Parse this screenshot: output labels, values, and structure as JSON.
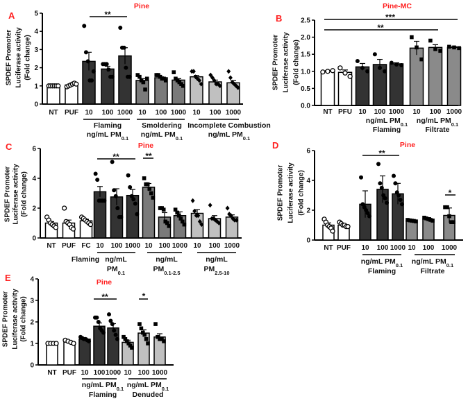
{
  "colors": {
    "white": "#ffffff",
    "dark": "#333333",
    "mid": "#7a7a7a",
    "light": "#c0c0c0",
    "filtrate": "#8a8a8a",
    "title": "#ff2020"
  },
  "chart_data": [
    {
      "panel": "A",
      "type": "bar",
      "title": "Pine",
      "ylabel": [
        "SPDEF Promoter",
        "Luciferase activity",
        "(Fold change)"
      ],
      "ylim": [
        0,
        5
      ],
      "yticks": [
        "0",
        "1",
        "2",
        "3",
        "4",
        "5"
      ],
      "categories": [
        "NT",
        "PUF",
        "10",
        "100",
        "1000",
        "10",
        "100",
        "1000",
        "10",
        "100",
        "1000"
      ],
      "bars": [
        {
          "mean": 1.0,
          "error": 0.02,
          "color": "white",
          "marker": "open-circle",
          "points": [
            1,
            1,
            1,
            1,
            1,
            1
          ]
        },
        {
          "mean": 1.05,
          "error": 0.05,
          "color": "white",
          "marker": "open-circle",
          "points": [
            0.95,
            1.0,
            1.05,
            1.1,
            1.15,
            1.1
          ]
        },
        {
          "mean": 2.35,
          "error": 0.5,
          "color": "dark",
          "marker": "circle",
          "points": [
            4.3,
            2.85,
            2.35,
            1.3,
            1.3,
            1.8
          ]
        },
        {
          "mean": 1.93,
          "error": 0.15,
          "color": "dark",
          "marker": "circle",
          "points": [
            2.2,
            2.2,
            2.2,
            1.9,
            1.5,
            1.5
          ]
        },
        {
          "mean": 2.65,
          "error": 0.45,
          "color": "dark",
          "marker": "circle",
          "points": [
            4.2,
            3.1,
            3.1,
            2.0,
            1.5,
            1.5
          ]
        },
        {
          "mean": 1.3,
          "error": 0.1,
          "color": "mid",
          "marker": "square",
          "points": [
            1.6,
            1.5,
            1.3,
            1.2,
            0.8,
            1.4
          ]
        },
        {
          "mean": 1.45,
          "error": 0.05,
          "color": "mid",
          "marker": "square",
          "points": [
            1.6,
            1.6,
            1.5,
            1.4,
            1.4,
            1.3
          ]
        },
        {
          "mean": 1.32,
          "error": 0.08,
          "color": "mid",
          "marker": "square",
          "points": [
            1.75,
            1.4,
            1.3,
            1.2,
            1.1,
            1.0
          ]
        },
        {
          "mean": 1.5,
          "error": 0.08,
          "color": "light",
          "marker": "diamond",
          "points": [
            1.8,
            1.8,
            1.5,
            1.4,
            1.3,
            1.1
          ]
        },
        {
          "mean": 1.22,
          "error": 0.1,
          "color": "light",
          "marker": "diamond",
          "points": [
            1.6,
            1.45,
            1.3,
            1.1,
            1.1,
            1.0
          ]
        },
        {
          "mean": 1.17,
          "error": 0.12,
          "color": "light",
          "marker": "diamond",
          "points": [
            1.8,
            1.45,
            1.2,
            1.1,
            1.0,
            0.9
          ]
        }
      ],
      "groups": [
        {
          "lines": [
            {
              "text": "Flaming"
            },
            {
              "text": "ng/mL PM",
              "sub": "0.1"
            }
          ]
        },
        {
          "lines": [
            {
              "text": "Smoldering"
            },
            {
              "text": "ng/mL PM",
              "sub": "0.1"
            }
          ]
        },
        {
          "lines": [
            {
              "text": "Incomplete Combustion"
            },
            {
              "text": "ng/mL PM",
              "sub": "0.1"
            }
          ]
        }
      ],
      "significance": [
        {
          "label": "**",
          "from": "Flaming 10",
          "to": "Flaming 1000"
        }
      ]
    },
    {
      "panel": "B",
      "type": "bar",
      "title": "Pine-MC",
      "ylabel": [
        "SPDEF Promoter",
        "Luciferase activity",
        "(Fold change)"
      ],
      "ylim": [
        0,
        2.5
      ],
      "yticks": [
        "0.0",
        "0.5",
        "1.0",
        "1.5",
        "2.0",
        "2.5"
      ],
      "categories": [
        "NT",
        "PFU",
        "10",
        "100",
        "1000",
        "10",
        "100",
        "1000"
      ],
      "bars": [
        {
          "mean": 1.0,
          "error": 0.02,
          "color": "white",
          "marker": "open-circle",
          "points": [
            0.98,
            1.0,
            1.02
          ]
        },
        {
          "mean": 0.97,
          "error": 0.07,
          "color": "white",
          "marker": "open-circle",
          "points": [
            1.1,
            0.95,
            0.85
          ]
        },
        {
          "mean": 1.13,
          "error": 0.1,
          "color": "dark",
          "marker": "circle",
          "points": [
            1.3,
            1.1,
            1.0
          ]
        },
        {
          "mean": 1.2,
          "error": 0.15,
          "color": "dark",
          "marker": "circle",
          "points": [
            1.5,
            1.1,
            1.0
          ]
        },
        {
          "mean": 1.22,
          "error": 0.03,
          "color": "dark",
          "marker": "circle",
          "points": [
            1.25,
            1.2,
            1.18
          ]
        },
        {
          "mean": 1.68,
          "error": 0.2,
          "color": "filtrate",
          "marker": "square",
          "points": [
            2.0,
            1.7,
            1.35
          ]
        },
        {
          "mean": 1.7,
          "error": 0.08,
          "color": "filtrate",
          "marker": "square",
          "points": [
            1.9,
            1.65,
            1.6
          ]
        },
        {
          "mean": 1.7,
          "error": 0.02,
          "color": "filtrate",
          "marker": "square",
          "points": [
            1.72,
            1.7,
            1.68
          ]
        }
      ],
      "groups": [
        {
          "lines": [
            {
              "text": "ng/mL PM",
              "sub": "0.1"
            },
            {
              "text": "Flaming"
            }
          ]
        },
        {
          "lines": [
            {
              "text": "ng/mL PM",
              "sub": "0.1"
            },
            {
              "text": "Filtrate"
            }
          ]
        }
      ],
      "significance": [
        {
          "label": "***",
          "from": "NT",
          "to": "Filtrate 1000"
        },
        {
          "label": "**",
          "from": "NT",
          "to": "Filtrate 100"
        }
      ]
    },
    {
      "panel": "C",
      "type": "bar",
      "title": "Pine",
      "ylabel": [
        "SPDEF Promoter",
        "Luciferase activity",
        "(Fold change)"
      ],
      "ylim": [
        0,
        6
      ],
      "yticks": [
        "0",
        "2",
        "4",
        "6"
      ],
      "categories": [
        "NT",
        "PUF",
        "FC",
        "10",
        "100",
        "1000",
        "10",
        "100",
        "1000",
        "10",
        "100",
        "1000"
      ],
      "bars": [
        {
          "mean": 1.0,
          "error": 0.1,
          "color": "white",
          "marker": "open-circle",
          "points": [
            1.4,
            1.2,
            1.0,
            0.9,
            0.8,
            0.7
          ]
        },
        {
          "mean": 1.0,
          "error": 0.2,
          "color": "white",
          "marker": "open-circle",
          "points": [
            2.0,
            1.1,
            1.0,
            0.9,
            0.7,
            0.6
          ]
        },
        {
          "mean": 1.15,
          "error": 0.1,
          "color": "white",
          "marker": "open-circle",
          "points": [
            1.4,
            1.3,
            1.2,
            1.1,
            1.0,
            0.9
          ]
        },
        {
          "mean": 3.1,
          "error": 0.35,
          "color": "dark",
          "marker": "circle",
          "points": [
            4.3,
            3.9,
            2.5,
            2.5,
            2.5,
            2.5
          ]
        },
        {
          "mean": 2.75,
          "error": 0.55,
          "color": "dark",
          "marker": "circle",
          "points": [
            5.1,
            3.2,
            2.8,
            2.0,
            1.4,
            1.4
          ]
        },
        {
          "mean": 2.85,
          "error": 0.4,
          "color": "dark",
          "marker": "circle",
          "points": [
            4.2,
            3.4,
            2.8,
            2.6,
            2.3,
            1.6
          ]
        },
        {
          "mean": 3.4,
          "error": 0.25,
          "color": "mid",
          "marker": "square",
          "points": [
            4.0,
            3.6,
            3.6,
            3.3,
            3.0,
            2.7
          ]
        },
        {
          "mean": 1.4,
          "error": 0.3,
          "color": "mid",
          "marker": "square",
          "points": [
            2.0,
            2.0,
            1.9,
            1.1,
            1.0,
            0.8
          ]
        },
        {
          "mean": 1.5,
          "error": 0.25,
          "color": "mid",
          "marker": "square",
          "points": [
            1.9,
            1.7,
            1.5,
            1.3,
            1.1,
            0.9
          ]
        },
        {
          "mean": 1.65,
          "error": 0.25,
          "color": "light",
          "marker": "diamond",
          "points": [
            2.5,
            1.8,
            1.5,
            1.5,
            1.1,
            0.9
          ]
        },
        {
          "mean": 1.3,
          "error": 0.2,
          "color": "light",
          "marker": "diamond",
          "points": [
            2.2,
            1.3,
            1.3,
            1.2,
            1.1,
            1.0
          ]
        },
        {
          "mean": 1.4,
          "error": 0.15,
          "color": "light",
          "marker": "diamond",
          "points": [
            2.0,
            1.6,
            1.5,
            1.3,
            1.2,
            1.2
          ]
        }
      ],
      "groups": [
        {
          "lines": [
            {
              "text": "Flaming"
            }
          ]
        },
        {
          "lines": [
            {
              "text": "ng/mL"
            },
            {
              "text": "PM",
              "sub": "0.1"
            }
          ]
        },
        {
          "lines": [
            {
              "text": "ng/mL"
            },
            {
              "text": "PM",
              "sub": "0.1-2.5"
            }
          ]
        },
        {
          "lines": [
            {
              "text": "ng/mL"
            },
            {
              "text": "PM",
              "sub": "2.5-10"
            }
          ]
        }
      ],
      "significance": [
        {
          "label": "**",
          "from": "PM0.1 10",
          "to": "PM0.1 1000"
        },
        {
          "label": "**",
          "from": "PM0.1-2.5 10",
          "to": "PM0.1-2.5 10"
        }
      ]
    },
    {
      "panel": "D",
      "type": "bar",
      "title": "Pine",
      "ylabel": [
        "SPDEF Promoter",
        "Luciferase activity",
        "(Fold change)"
      ],
      "ylim": [
        0,
        6
      ],
      "yticks": [
        "0",
        "2",
        "4",
        "6"
      ],
      "categories": [
        "NT",
        "PUF",
        "10",
        "100",
        "1000",
        "10",
        "100",
        "1000"
      ],
      "bars": [
        {
          "mean": 1.0,
          "error": 0.15,
          "color": "white",
          "marker": "open-circle",
          "points": [
            1.4,
            1.2,
            1.0,
            0.9,
            0.8,
            0.6
          ]
        },
        {
          "mean": 1.0,
          "error": 0.1,
          "color": "white",
          "marker": "open-circle",
          "points": [
            1.2,
            1.1,
            1.0,
            1.0,
            0.9,
            0.9
          ]
        },
        {
          "mean": 2.4,
          "error": 0.9,
          "color": "dark",
          "marker": "circle",
          "points": [
            4.2,
            2.4,
            2.2,
            2.0,
            1.8,
            1.6
          ]
        },
        {
          "mean": 3.4,
          "error": 0.9,
          "color": "dark",
          "marker": "circle",
          "points": [
            5.1,
            3.8,
            3.5,
            3.0,
            2.8,
            2.5
          ]
        },
        {
          "mean": 3.1,
          "error": 0.7,
          "color": "dark",
          "marker": "circle",
          "points": [
            4.3,
            3.8,
            3.2,
            3.0,
            2.7,
            2.4
          ]
        },
        {
          "mean": 1.3,
          "error": 0.05,
          "color": "filtrate",
          "marker": "square",
          "points": [
            1.35,
            1.32,
            1.3,
            1.28,
            1.25
          ]
        },
        {
          "mean": 1.4,
          "error": 0.1,
          "color": "filtrate",
          "marker": "square",
          "points": [
            1.5,
            1.45,
            1.4,
            1.35,
            1.3
          ]
        },
        {
          "mean": 1.65,
          "error": 0.5,
          "color": "filtrate",
          "marker": "square",
          "points": [
            2.2,
            2.2,
            1.6,
            1.2,
            1.2
          ]
        }
      ],
      "groups": [
        {
          "lines": [
            {
              "text": "ng/mL PM",
              "sub": "0.1"
            },
            {
              "text": "Flaming"
            }
          ]
        },
        {
          "lines": [
            {
              "text": "ng/mL PM",
              "sub": "0.1"
            },
            {
              "text": "Filtrate"
            }
          ]
        }
      ],
      "significance": [
        {
          "label": "**",
          "from": "Flaming 10",
          "to": "Flaming 1000"
        },
        {
          "label": "*",
          "from": "Filtrate 1000",
          "to": "Filtrate 1000"
        }
      ]
    },
    {
      "panel": "E",
      "type": "bar",
      "title": "Pine",
      "ylabel": [
        "SPDEF Promoter",
        "Luciferase activity",
        "(Fold change)"
      ],
      "ylim": [
        0,
        4
      ],
      "yticks": [
        "0",
        "1",
        "2",
        "3",
        "4"
      ],
      "categories": [
        "NT",
        "PUF",
        "10",
        "100",
        "1000",
        "10",
        "100",
        "1000"
      ],
      "bars": [
        {
          "mean": 1.0,
          "error": 0.02,
          "color": "white",
          "marker": "open-circle",
          "points": [
            1,
            1,
            1,
            1
          ]
        },
        {
          "mean": 1.07,
          "error": 0.05,
          "color": "white",
          "marker": "open-circle",
          "points": [
            1.15,
            1.1,
            1.05,
            1.0
          ]
        },
        {
          "mean": 1.2,
          "error": 0.05,
          "color": "dark",
          "marker": "circle",
          "points": [
            1.3,
            1.25,
            1.2,
            1.2,
            1.15,
            1.1
          ]
        },
        {
          "mean": 1.8,
          "error": 0.15,
          "color": "dark",
          "marker": "circle",
          "points": [
            2.2,
            2.2,
            2.0,
            1.7,
            1.6,
            1.5
          ]
        },
        {
          "mean": 1.72,
          "error": 0.2,
          "color": "dark",
          "marker": "circle",
          "points": [
            2.35,
            2.05,
            1.9,
            1.6,
            1.4,
            1.2
          ]
        },
        {
          "mean": 1.05,
          "error": 0.1,
          "color": "light",
          "marker": "square",
          "points": [
            1.3,
            1.2,
            1.1,
            1.0,
            0.9,
            0.8
          ]
        },
        {
          "mean": 1.48,
          "error": 0.15,
          "color": "light",
          "marker": "square",
          "points": [
            1.9,
            1.7,
            1.5,
            1.4,
            1.2,
            1.0
          ]
        },
        {
          "mean": 1.3,
          "error": 0.15,
          "color": "light",
          "marker": "square",
          "points": [
            1.9,
            1.3,
            1.2,
            1.2,
            1.1
          ]
        }
      ],
      "groups": [
        {
          "lines": [
            {
              "text": "ng/mL PM",
              "sub": "0.1"
            },
            {
              "text": "Flaming"
            }
          ]
        },
        {
          "lines": [
            {
              "text": "ng/mL PM",
              "sub": "0.1"
            },
            {
              "text": "Denuded"
            }
          ]
        }
      ],
      "significance": [
        {
          "label": "**",
          "from": "Flaming 100",
          "to": "Flaming 1000"
        },
        {
          "label": "*",
          "from": "Denuded 100",
          "to": "Denuded 100"
        }
      ]
    }
  ]
}
